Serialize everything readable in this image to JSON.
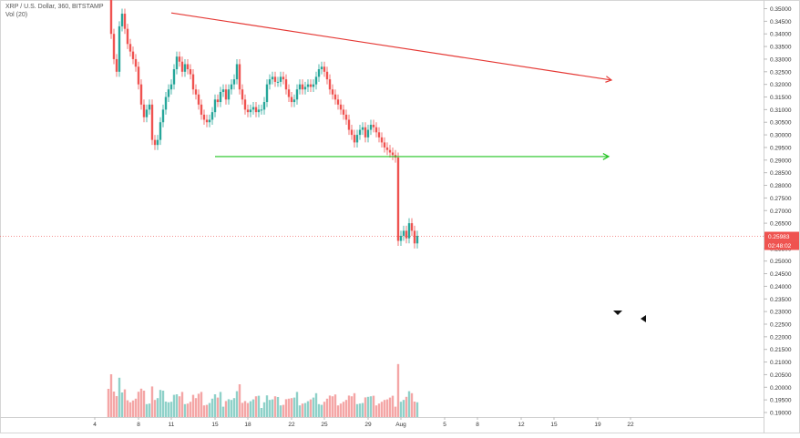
{
  "header": {
    "symbol_line": "XRP / U.S. Dollar, 360, BITSTAMP",
    "volume_line": "Vol (20)"
  },
  "colors": {
    "up": "#26a69a",
    "down": "#ef5350",
    "vol_up": "#8fd1c9",
    "vol_down": "#f4a6a6",
    "resistance": "#e53935",
    "support": "#22c322",
    "price_label_bg": "#ef5350",
    "grid": "#eeeeee"
  },
  "chart_data": {
    "type": "candlestick",
    "title": "XRP / U.S. Dollar, 360, BITSTAMP",
    "ylim": [
      0.188,
      0.3525
    ],
    "y_ticks": [
      "0.35000",
      "0.34500",
      "0.34000",
      "0.33500",
      "0.33000",
      "0.32500",
      "0.32000",
      "0.31500",
      "0.31000",
      "0.30500",
      "0.30000",
      "0.29500",
      "0.29000",
      "0.28500",
      "0.28000",
      "0.27500",
      "0.27000",
      "0.26500",
      "0.26000",
      "0.25500",
      "0.25000",
      "0.24500",
      "0.24000",
      "0.23500",
      "0.23000",
      "0.22500",
      "0.22000",
      "0.21500",
      "0.21000",
      "0.20500",
      "0.20000",
      "0.19500",
      "0.19000"
    ],
    "x_ticks": [
      {
        "label": "4",
        "bar": -5
      },
      {
        "label": "8",
        "bar": 11
      },
      {
        "label": "11",
        "bar": 23
      },
      {
        "label": "15",
        "bar": 39
      },
      {
        "label": "18",
        "bar": 51
      },
      {
        "label": "22",
        "bar": 67
      },
      {
        "label": "25",
        "bar": 79
      },
      {
        "label": "29",
        "bar": 95
      },
      {
        "label": "Aug",
        "bar": 107
      },
      {
        "label": "5",
        "bar": 123
      },
      {
        "label": "8",
        "bar": 135
      },
      {
        "label": "12",
        "bar": 151
      },
      {
        "label": "15",
        "bar": 163
      },
      {
        "label": "19",
        "bar": 179
      },
      {
        "label": "22",
        "bar": 191
      }
    ],
    "current_price": "0.25983",
    "countdown": "02:48:02",
    "current_value": 0.2598,
    "ohlc_close": [
      0.365,
      0.34,
      0.33,
      0.325,
      0.343,
      0.348,
      0.342,
      0.336,
      0.333,
      0.33,
      0.327,
      0.32,
      0.312,
      0.307,
      0.31,
      0.312,
      0.298,
      0.296,
      0.298,
      0.305,
      0.31,
      0.315,
      0.318,
      0.32,
      0.326,
      0.331,
      0.329,
      0.325,
      0.328,
      0.326,
      0.324,
      0.318,
      0.316,
      0.312,
      0.308,
      0.306,
      0.305,
      0.306,
      0.309,
      0.314,
      0.313,
      0.317,
      0.318,
      0.314,
      0.318,
      0.32,
      0.322,
      0.328,
      0.318,
      0.314,
      0.31,
      0.309,
      0.31,
      0.311,
      0.309,
      0.31,
      0.31,
      0.313,
      0.32,
      0.322,
      0.323,
      0.321,
      0.321,
      0.323,
      0.322,
      0.318,
      0.315,
      0.313,
      0.314,
      0.318,
      0.32,
      0.318,
      0.319,
      0.32,
      0.319,
      0.32,
      0.323,
      0.326,
      0.327,
      0.325,
      0.322,
      0.318,
      0.316,
      0.314,
      0.312,
      0.31,
      0.308,
      0.306,
      0.302,
      0.3,
      0.297,
      0.3,
      0.302,
      0.303,
      0.299,
      0.302,
      0.304,
      0.303,
      0.301,
      0.299,
      0.297,
      0.295,
      0.294,
      0.293,
      0.292,
      0.291,
      0.258,
      0.26,
      0.262,
      0.259,
      0.265,
      0.262,
      0.257,
      0.26
    ],
    "ohlc_open": [
      0.38,
      0.365,
      0.34,
      0.33,
      0.325,
      0.343,
      0.348,
      0.342,
      0.336,
      0.333,
      0.33,
      0.327,
      0.32,
      0.312,
      0.307,
      0.31,
      0.312,
      0.298,
      0.296,
      0.298,
      0.305,
      0.31,
      0.315,
      0.318,
      0.32,
      0.326,
      0.331,
      0.329,
      0.325,
      0.328,
      0.326,
      0.324,
      0.318,
      0.316,
      0.312,
      0.308,
      0.306,
      0.305,
      0.306,
      0.309,
      0.314,
      0.313,
      0.317,
      0.318,
      0.314,
      0.318,
      0.32,
      0.322,
      0.328,
      0.318,
      0.314,
      0.31,
      0.309,
      0.31,
      0.311,
      0.309,
      0.31,
      0.31,
      0.313,
      0.32,
      0.322,
      0.323,
      0.321,
      0.321,
      0.323,
      0.322,
      0.318,
      0.315,
      0.313,
      0.314,
      0.318,
      0.32,
      0.318,
      0.319,
      0.32,
      0.319,
      0.32,
      0.323,
      0.326,
      0.327,
      0.325,
      0.322,
      0.318,
      0.316,
      0.314,
      0.312,
      0.31,
      0.308,
      0.306,
      0.302,
      0.3,
      0.297,
      0.3,
      0.302,
      0.303,
      0.299,
      0.302,
      0.304,
      0.303,
      0.301,
      0.299,
      0.297,
      0.295,
      0.294,
      0.293,
      0.292,
      0.291,
      0.258,
      0.26,
      0.262,
      0.259,
      0.265,
      0.262,
      0.257
    ],
    "annotations": [
      {
        "kind": "resistance-trendline",
        "from": {
          "bar": 23,
          "value": 0.3483
        },
        "to": {
          "bar": 184,
          "value": 0.3217
        }
      },
      {
        "kind": "support-line",
        "from": {
          "bar": 39,
          "value": 0.2914
        },
        "to": {
          "bar": 183,
          "value": 0.2914
        }
      }
    ]
  }
}
